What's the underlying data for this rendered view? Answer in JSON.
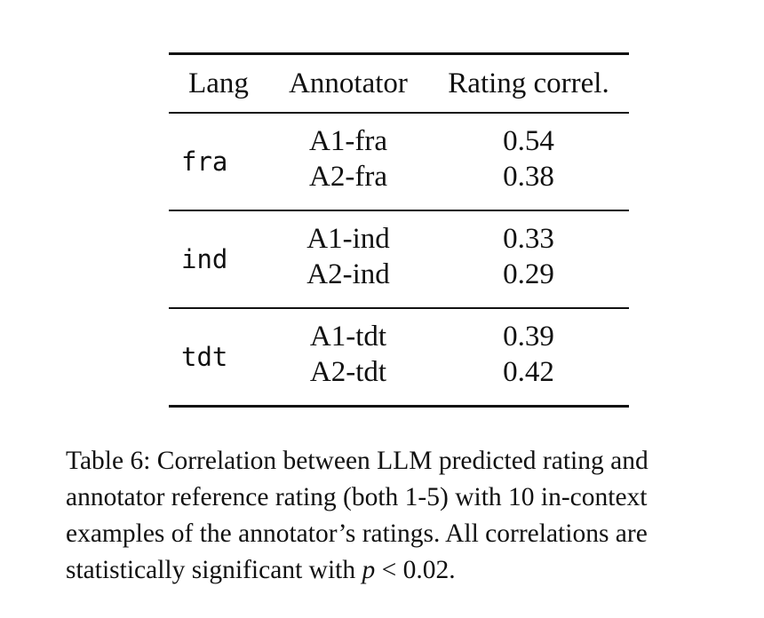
{
  "table": {
    "headers": [
      "Lang",
      "Annotator",
      "Rating correl."
    ],
    "groups": [
      {
        "lang": "fra",
        "rows": [
          {
            "annotator": "A1-fra",
            "value": "0.54"
          },
          {
            "annotator": "A2-fra",
            "value": "0.38"
          }
        ]
      },
      {
        "lang": "ind",
        "rows": [
          {
            "annotator": "A1-ind",
            "value": "0.33"
          },
          {
            "annotator": "A2-ind",
            "value": "0.29"
          }
        ]
      },
      {
        "lang": "tdt",
        "rows": [
          {
            "annotator": "A1-tdt",
            "value": "0.39"
          },
          {
            "annotator": "A2-tdt",
            "value": "0.42"
          }
        ]
      }
    ]
  },
  "caption": {
    "text": "Table 6: Correlation between LLM predicted rating and annotator reference rating (both 1-5) with 10 in-context examples of the annotator’s ratings. All correlations are statistically significant with ",
    "variable": "p",
    "relation": " < 0.02."
  }
}
